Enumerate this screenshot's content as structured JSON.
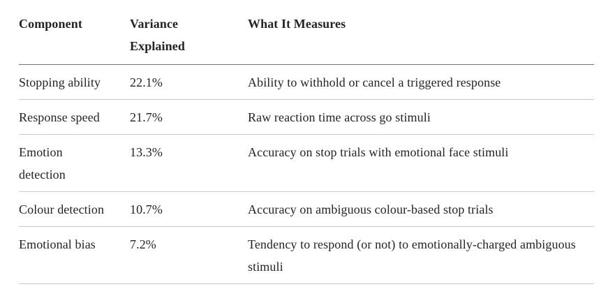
{
  "table": {
    "columns": [
      "Component",
      "Variance Explained",
      "What It Measures"
    ],
    "rows": [
      {
        "component": "Stopping ability",
        "variance": "22.1%",
        "measures": "Ability to withhold or cancel a triggered response"
      },
      {
        "component": "Response speed",
        "variance": "21.7%",
        "measures": "Raw reaction time across go stimuli"
      },
      {
        "component": "Emotion detection",
        "variance": "13.3%",
        "measures": "Accuracy on stop trials with emotional face stimuli"
      },
      {
        "component": "Colour detection",
        "variance": "10.7%",
        "measures": "Accuracy on ambiguous colour-based stop trials"
      },
      {
        "component": "Emotional bias",
        "variance": "7.2%",
        "measures": "Tendency to respond (or not) to emotionally-charged ambiguous stimuli"
      }
    ],
    "colors": {
      "text": "#242424",
      "header_rule": "#737373",
      "row_rule": "#c9c9c9",
      "background": "#ffffff"
    }
  },
  "chart_data": {
    "type": "table",
    "title": "",
    "columns": [
      "Component",
      "Variance Explained",
      "What It Measures"
    ],
    "rows": [
      [
        "Stopping ability",
        "22.1%",
        "Ability to withhold or cancel a triggered response"
      ],
      [
        "Response speed",
        "21.7%",
        "Raw reaction time across go stimuli"
      ],
      [
        "Emotion detection",
        "13.3%",
        "Accuracy on stop trials with emotional face stimuli"
      ],
      [
        "Colour detection",
        "10.7%",
        "Accuracy on ambiguous colour-based stop trials"
      ],
      [
        "Emotional bias",
        "7.2%",
        "Tendency to respond (or not) to emotionally-charged ambiguous stimuli"
      ]
    ],
    "variance_explained_values_percent": [
      22.1,
      21.7,
      13.3,
      10.7,
      7.2
    ]
  }
}
